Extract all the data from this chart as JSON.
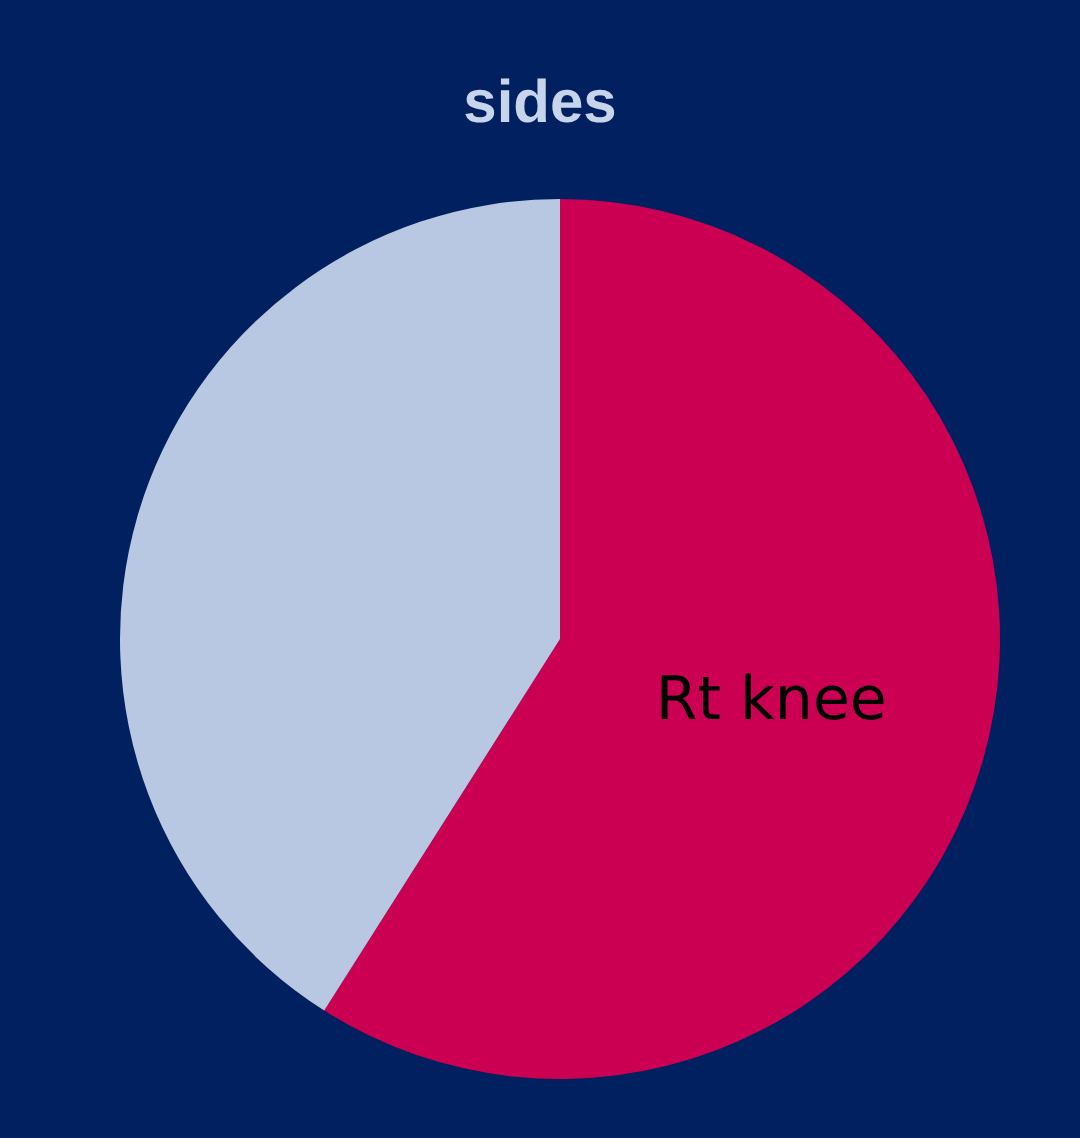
{
  "chart_data": {
    "type": "pie",
    "title": "sides",
    "categories": [
      "Rt knee",
      null
    ],
    "values": [
      59,
      41
    ],
    "colors": [
      "#cc0052",
      "#b9c8e2"
    ],
    "legend": false
  }
}
